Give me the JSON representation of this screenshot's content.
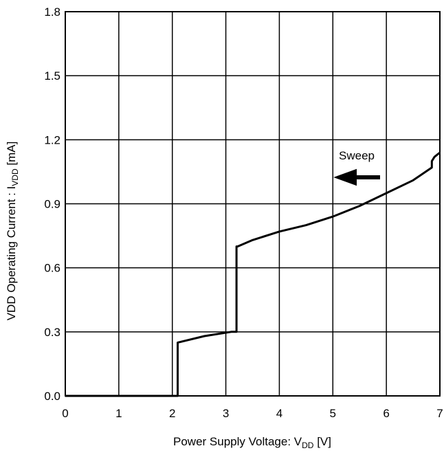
{
  "chart_data": {
    "type": "line",
    "xlabel": {
      "main": "Power Supply Voltage: V",
      "sub": "DD",
      "unit": " [V]"
    },
    "ylabel": {
      "main": "VDD Operating Current : I",
      "sub": "VDD",
      "unit": " [mA]"
    },
    "xlim": [
      0,
      7
    ],
    "ylim": [
      0,
      1.8
    ],
    "x_ticks": [
      "0",
      "1",
      "2",
      "3",
      "4",
      "5",
      "6",
      "7"
    ],
    "y_ticks": [
      "0.0",
      "0.3",
      "0.6",
      "0.9",
      "1.2",
      "1.5",
      "1.8"
    ],
    "grid": true,
    "annotation": {
      "text": "Sweep",
      "arrow": "left"
    },
    "series": [
      {
        "color": "#000000",
        "x": [
          0,
          2.08,
          2.1,
          2.1,
          2.6,
          3.1,
          3.2,
          3.2,
          3.22,
          3.5,
          4.0,
          4.5,
          5.0,
          5.5,
          6.0,
          6.5,
          6.85,
          6.85,
          6.9,
          7.0
        ],
        "y": [
          0,
          0,
          0,
          0.25,
          0.28,
          0.3,
          0.3,
          0.7,
          0.7,
          0.73,
          0.77,
          0.8,
          0.84,
          0.89,
          0.95,
          1.01,
          1.07,
          1.1,
          1.12,
          1.14
        ]
      }
    ]
  }
}
